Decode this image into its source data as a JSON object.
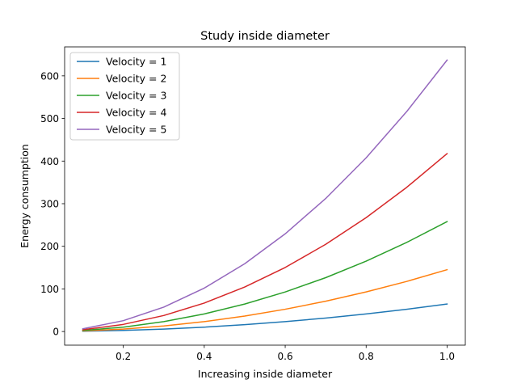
{
  "chart_data": {
    "type": "line",
    "title": "Study inside diameter",
    "xlabel": "Increasing inside diameter",
    "ylabel": "Energy consumption",
    "xlim": [
      0.055,
      1.045
    ],
    "ylim": [
      -32,
      668
    ],
    "xticks": [
      0.2,
      0.4,
      0.6,
      0.8,
      1.0
    ],
    "xtick_labels": [
      "0.2",
      "0.4",
      "0.6",
      "0.8",
      "1.0"
    ],
    "yticks": [
      0,
      100,
      200,
      300,
      400,
      500,
      600
    ],
    "ytick_labels": [
      "0",
      "100",
      "200",
      "300",
      "400",
      "500",
      "600"
    ],
    "grid": false,
    "legend_position": "upper-left",
    "x": [
      0.1,
      0.2,
      0.3,
      0.4,
      0.5,
      0.6,
      0.7,
      0.8,
      0.9,
      1.0
    ],
    "series": [
      {
        "name": "Velocity = 1",
        "color": "#1f77b4",
        "values": [
          0.65,
          2.6,
          5.8,
          10.3,
          16.1,
          23.2,
          31.6,
          41.3,
          52.2,
          64.5
        ]
      },
      {
        "name": "Velocity = 2",
        "color": "#ff7f0e",
        "values": [
          1.45,
          5.8,
          13.1,
          23.2,
          36.3,
          52.3,
          71.1,
          92.9,
          117.5,
          145.1
        ]
      },
      {
        "name": "Velocity = 3",
        "color": "#2ca02c",
        "values": [
          2.6,
          10.3,
          23.2,
          41.3,
          64.5,
          92.9,
          126.4,
          165.1,
          209.0,
          258.0
        ]
      },
      {
        "name": "Velocity = 4",
        "color": "#d62728",
        "values": [
          4.2,
          16.7,
          37.6,
          66.8,
          104.4,
          150.3,
          204.6,
          267.2,
          338.2,
          417.5
        ]
      },
      {
        "name": "Velocity = 5",
        "color": "#9467bd",
        "values": [
          6.4,
          25.5,
          57.3,
          101.9,
          159.2,
          229.3,
          312.1,
          407.7,
          515.9,
          637.0
        ]
      }
    ]
  }
}
